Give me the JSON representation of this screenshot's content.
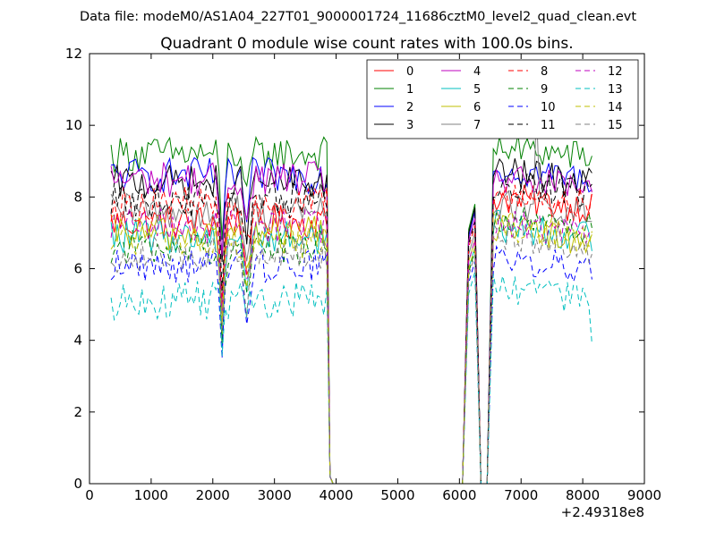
{
  "chart_data": {
    "type": "line",
    "suptitle": "Data file: modeM0/AS1A04_227T01_9000001724_11686cztM0_level2_quad_clean.evt",
    "title": "Quadrant 0 module wise count rates with 100.0s bins.",
    "xlabel": "",
    "ylabel": "",
    "x_offset_label": "+2.49318e8",
    "xlim": [
      0,
      9000
    ],
    "ylim": [
      0,
      12
    ],
    "xticks": [
      0,
      1000,
      2000,
      3000,
      4000,
      5000,
      6000,
      7000,
      8000,
      9000
    ],
    "yticks": [
      0,
      2,
      4,
      6,
      8,
      10,
      12
    ],
    "legend_position": "top-right",
    "segments": [
      {
        "x_start": 350,
        "x_end": 3850
      },
      {
        "x_start": 6150,
        "x_end": 6250
      },
      {
        "x_start": 6550,
        "x_end": 8150
      }
    ],
    "gap_x": [
      3950,
      4050,
      4500,
      5000,
      5500,
      6000,
      6050
    ],
    "dip_x": [
      6350,
      6450
    ],
    "dip_points": [
      2150,
      2550
    ],
    "series": [
      {
        "name": "0",
        "color": "#ff0000",
        "dash": "solid",
        "level": 7.3,
        "seg2": [
          7.0,
          7.6
        ],
        "seg3": 8.0
      },
      {
        "name": "1",
        "color": "#008000",
        "dash": "solid",
        "level": 9.2,
        "seg2": [
          7.1,
          7.8
        ],
        "seg3": 9.4
      },
      {
        "name": "2",
        "color": "#0000ff",
        "dash": "solid",
        "level": 8.6,
        "seg2": [
          6.9,
          7.6
        ],
        "seg3": 8.8
      },
      {
        "name": "3",
        "color": "#000000",
        "dash": "solid",
        "level": 8.4,
        "seg2": [
          7.0,
          7.7
        ],
        "seg3": 8.7
      },
      {
        "name": "4",
        "color": "#bf00bf",
        "dash": "solid",
        "level": 8.5,
        "seg2": [
          6.8,
          7.4
        ],
        "seg3": 8.5
      },
      {
        "name": "5",
        "color": "#00bfbf",
        "dash": "solid",
        "level": 6.9,
        "seg2": [
          6.0,
          6.6
        ],
        "seg3": 7.2
      },
      {
        "name": "6",
        "color": "#bfbf00",
        "dash": "solid",
        "level": 7.0,
        "seg2": [
          6.2,
          6.8
        ],
        "seg3": 7.1
      },
      {
        "name": "7",
        "color": "#808080",
        "dash": "solid",
        "level": 7.6,
        "seg2": [
          6.4,
          7.0
        ],
        "seg3": 7.8
      },
      {
        "name": "8",
        "color": "#ff0000",
        "dash": "dashed",
        "level": 7.8,
        "seg2": [
          6.6,
          7.2
        ],
        "seg3": 8.1
      },
      {
        "name": "9",
        "color": "#008000",
        "dash": "dashed",
        "level": 6.6,
        "seg2": [
          5.9,
          6.5
        ],
        "seg3": 7.4
      },
      {
        "name": "10",
        "color": "#0000ff",
        "dash": "dashed",
        "level": 6.1,
        "seg2": [
          5.6,
          6.2
        ],
        "seg3": 6.3
      },
      {
        "name": "11",
        "color": "#000000",
        "dash": "dashed",
        "level": 7.9,
        "seg2": [
          6.7,
          7.3
        ],
        "seg3": 8.4
      },
      {
        "name": "12",
        "color": "#bf00bf",
        "dash": "dashed",
        "level": 7.2,
        "seg2": [
          6.2,
          6.8
        ],
        "seg3": 7.3
      },
      {
        "name": "13",
        "color": "#00bfbf",
        "dash": "dashed",
        "level": 5.1,
        "seg2": [
          5.3,
          5.9
        ],
        "seg3": 5.4
      },
      {
        "name": "14",
        "color": "#bfbf00",
        "dash": "dashed",
        "level": 6.8,
        "seg2": [
          6.0,
          6.6
        ],
        "seg3": 7.2
      },
      {
        "name": "15",
        "color": "#808080",
        "dash": "dashed",
        "level": 6.4,
        "seg2": [
          5.8,
          6.4
        ],
        "seg3": 6.9
      }
    ]
  }
}
